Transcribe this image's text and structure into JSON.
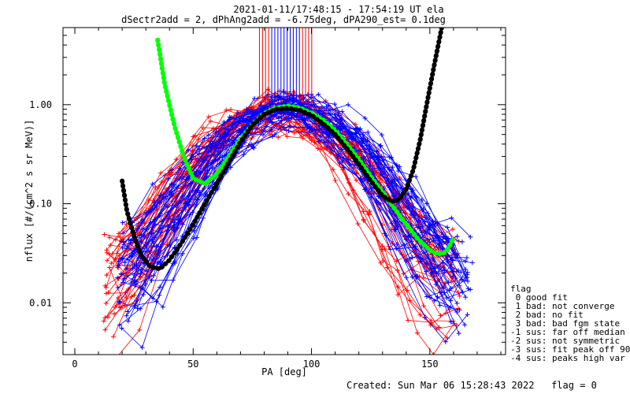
{
  "chart_data": {
    "type": "line",
    "title_line1": "2021-01-11/17:48:15 - 17:54:19 UT ela",
    "title_line2": "dSectr2add = 2, dPhAng2add = -6.75deg, dPA290_est=   0.1deg",
    "xlabel": "PA [deg]",
    "ylabel": "nflux [#/(cm^2 s sr MeV)]",
    "x_ticks": [
      "0",
      "50",
      "100",
      "150"
    ],
    "y_ticks": [
      "0.01",
      "0.10",
      "1.00"
    ],
    "xlim": [
      -5,
      182
    ],
    "ylim_log": [
      0.003,
      6.0
    ],
    "yscale": "log",
    "colors": {
      "red": "#ff0000",
      "blue": "#0000ff",
      "green": "#00ff00",
      "black": "#000000"
    },
    "series": [
      {
        "color": "green",
        "x": [
          35,
          38,
          42,
          46,
          50,
          55,
          60,
          65,
          70,
          75,
          80,
          85,
          90,
          95,
          100,
          105,
          110,
          115,
          120,
          125,
          130,
          135,
          140,
          145,
          150,
          153,
          156,
          158,
          160
        ],
        "y": [
          4.5,
          1.6,
          0.62,
          0.3,
          0.18,
          0.16,
          0.2,
          0.3,
          0.45,
          0.63,
          0.82,
          0.93,
          0.97,
          0.93,
          0.82,
          0.7,
          0.55,
          0.4,
          0.28,
          0.19,
          0.13,
          0.09,
          0.062,
          0.044,
          0.034,
          0.031,
          0.032,
          0.036,
          0.045
        ]
      },
      {
        "color": "black",
        "x": [
          20,
          22,
          25,
          28,
          32,
          36,
          40,
          45,
          50,
          55,
          60,
          65,
          70,
          75,
          80,
          85,
          90,
          95,
          100,
          105,
          110,
          115,
          120,
          125,
          130,
          134,
          137,
          140,
          143,
          146,
          149,
          152,
          155
        ],
        "y": [
          0.17,
          0.085,
          0.047,
          0.03,
          0.023,
          0.022,
          0.027,
          0.04,
          0.062,
          0.1,
          0.16,
          0.26,
          0.42,
          0.62,
          0.8,
          0.9,
          0.92,
          0.88,
          0.78,
          0.64,
          0.5,
          0.36,
          0.25,
          0.17,
          0.12,
          0.105,
          0.11,
          0.14,
          0.22,
          0.45,
          1.1,
          2.6,
          6.0
        ]
      }
    ],
    "legend": {
      "title": "flag",
      "entries": [
        " 0 good fit",
        " 1 bad: not converge",
        " 2 bad: no fit",
        " 3 bad: bad fgm state",
        "-1 sus: far off median",
        "-2 sus: not symmetric",
        "-3 sus: fit peak off 90",
        "-4 sus: peaks high var"
      ]
    },
    "footer": "Created: Sun Mar 06 15:28:43 2022   flag = 0"
  }
}
